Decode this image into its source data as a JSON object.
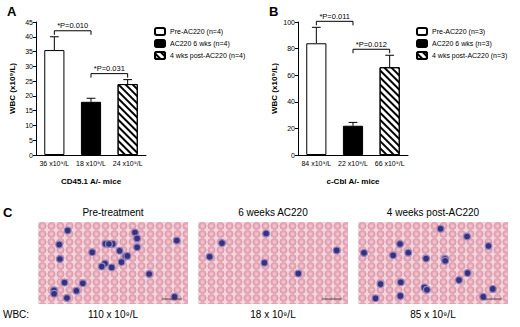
{
  "chart_data": [
    {
      "type": "bar",
      "title": "A",
      "y_label": "WBC (x10⁹/L)",
      "x_label": "CD45.1 A/- mice",
      "categories": [
        "36 x10⁹/L",
        "18 x10⁹/L",
        "24 x10⁹/L"
      ],
      "series": [
        {
          "name": "Pre-AC220 (n=4)",
          "color": "#ffffff",
          "values": [
            35.5,
            null,
            null
          ],
          "errors": [
            4.5,
            null,
            null
          ]
        },
        {
          "name": "AC220 6 wks (n=4)",
          "color": "#000000",
          "values": [
            null,
            18,
            null
          ],
          "errors": [
            null,
            1.2,
            null
          ]
        },
        {
          "name": "4 wks post-AC220 (n=4)",
          "color": "#ffffff",
          "values": [
            null,
            null,
            24
          ],
          "errors": [
            null,
            null,
            1.5
          ]
        }
      ],
      "annotations": [
        {
          "text": "*P=0.010",
          "between": [
            0,
            1
          ]
        },
        {
          "text": "*P=0.031",
          "between": [
            1,
            2
          ]
        }
      ],
      "ylim": [
        0,
        45
      ],
      "yticks": [
        0,
        5,
        10,
        15,
        20,
        25,
        30,
        35,
        40,
        45
      ],
      "grid": false,
      "legend": "upper right"
    },
    {
      "type": "bar",
      "title": "B",
      "y_label": "WBC (x10⁹/L)",
      "x_label": "c-Cbl A/- mice",
      "categories": [
        "84 x10⁹/L",
        "22 x10⁹/L",
        "66 x10⁹/L"
      ],
      "series": [
        {
          "name": "Pre-AC220 (n=3)",
          "color": "#ffffff",
          "values": [
            84,
            null,
            null
          ],
          "errors": [
            12,
            null,
            null
          ]
        },
        {
          "name": "AC220 6 wks (n=3)",
          "color": "#000000",
          "values": [
            null,
            22,
            null
          ],
          "errors": [
            null,
            2.5,
            null
          ]
        },
        {
          "name": "4 wks post-AC220 (n=3)",
          "color": "#ffffff",
          "values": [
            null,
            null,
            66
          ],
          "errors": [
            null,
            null,
            9
          ]
        }
      ],
      "annotations": [
        {
          "text": "*P=0.011",
          "between": [
            0,
            1
          ]
        },
        {
          "text": "*P=0.012",
          "between": [
            1,
            2
          ]
        }
      ],
      "ylim": [
        0,
        100
      ],
      "yticks": [
        0,
        20,
        40,
        60,
        80,
        100
      ],
      "grid": false,
      "legend": "upper right"
    }
  ],
  "panel_c": {
    "title": "C",
    "wbc_label": "WBC:",
    "images": [
      {
        "title": "Pre-treatment",
        "wbc": "110 x 10⁹/L"
      },
      {
        "title": "6 weeks AC220",
        "wbc": "18 x 10⁹/L"
      },
      {
        "title": "4 weeks post-AC220",
        "wbc": "85 x 10⁹/L"
      }
    ]
  }
}
